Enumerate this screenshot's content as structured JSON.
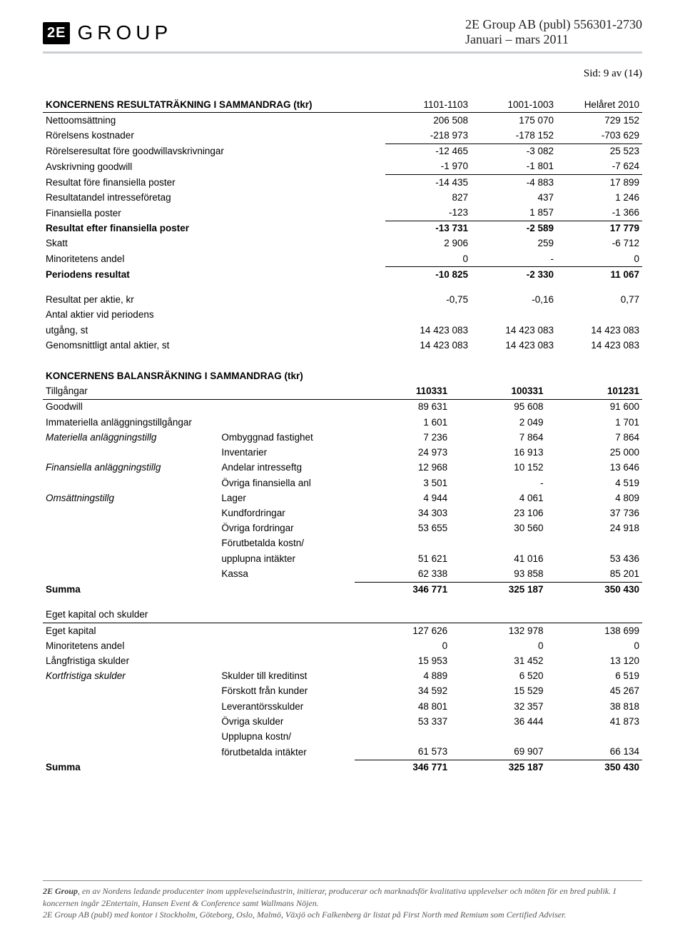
{
  "header": {
    "logo_box": "2E",
    "logo_text": "GROUP",
    "company_line": "2E Group AB (publ) 556301-2730",
    "period_line": "Januari – mars 2011"
  },
  "page_number": "Sid: 9 av (14)",
  "income": {
    "title": "KONCERNENS RESULTATRÄKNING I SAMMANDRAG (tkr)",
    "cols": [
      "1101-1103",
      "1001-1003",
      "Helåret 2010"
    ],
    "rows": [
      {
        "label": "Nettoomsättning",
        "v": [
          "206 508",
          "175 070",
          "729 152"
        ]
      },
      {
        "label": "Rörelsens kostnader",
        "v": [
          "-218 973",
          "-178 152",
          "-703 629"
        ],
        "uline": true
      },
      {
        "label": "Rörelseresultat före goodwillavskrivningar",
        "v": [
          "-12 465",
          "-3 082",
          "25 523"
        ]
      },
      {
        "label": "Avskrivning goodwill",
        "v": [
          "-1 970",
          "-1 801",
          "-7 624"
        ],
        "uline": true
      },
      {
        "label": "Resultat före finansiella poster",
        "v": [
          "-14 435",
          "-4 883",
          "17 899"
        ]
      },
      {
        "label": "Resultatandel intresseföretag",
        "v": [
          "827",
          "437",
          "1 246"
        ]
      },
      {
        "label": "Finansiella poster",
        "v": [
          "-123",
          "1 857",
          "-1 366"
        ],
        "uline": true
      },
      {
        "label": "Resultat efter finansiella poster",
        "bold": true,
        "v": [
          "-13 731",
          "-2 589",
          "17 779"
        ]
      },
      {
        "label": "Skatt",
        "v": [
          "2 906",
          "259",
          "-6 712"
        ]
      },
      {
        "label": "Minoritetens andel",
        "v": [
          "0",
          "-",
          "0"
        ],
        "uline": true
      },
      {
        "label": "Periodens resultat",
        "bold": true,
        "v": [
          "-10 825",
          "-2 330",
          "11 067"
        ]
      }
    ],
    "extra": [
      {
        "label": "Resultat per aktie, kr",
        "v": [
          "-0,75",
          "-0,16",
          "0,77"
        ]
      },
      {
        "label": "Antal aktier vid periodens",
        "v": [
          "",
          "",
          ""
        ]
      },
      {
        "label": "utgång, st",
        "v": [
          "14 423 083",
          "14 423 083",
          "14 423 083"
        ]
      },
      {
        "label": "Genomsnittligt antal aktier, st",
        "v": [
          "14 423 083",
          "14 423 083",
          "14 423 083"
        ]
      }
    ]
  },
  "balance": {
    "title": "KONCERNENS BALANSRÄKNING I SAMMANDRAG (tkr)",
    "assets_header": {
      "label": "Tillgångar",
      "v": [
        "110331",
        "100331",
        "101231"
      ]
    },
    "asset_rows": [
      {
        "label": "Goodwill",
        "sub": "",
        "v": [
          "89 631",
          "95 608",
          "91 600"
        ]
      },
      {
        "label": "Immateriella anläggningstillgångar",
        "sub": "",
        "v": [
          "1 601",
          "2 049",
          "1 701"
        ]
      },
      {
        "label": "Materiella anläggningstillg",
        "italic": true,
        "sub": "Ombyggnad fastighet",
        "v": [
          "7 236",
          "7 864",
          "7 864"
        ]
      },
      {
        "label": "",
        "sub": "Inventarier",
        "v": [
          "24 973",
          "16 913",
          "25 000"
        ]
      },
      {
        "label": "Finansiella anläggningstillg",
        "italic": true,
        "sub": "Andelar intresseftg",
        "v": [
          "12 968",
          "10 152",
          "13 646"
        ]
      },
      {
        "label": "",
        "sub": "Övriga finansiella anl",
        "v": [
          "3 501",
          "-",
          "4 519"
        ]
      },
      {
        "label": "Omsättningstillg",
        "italic": true,
        "sub": "Lager",
        "v": [
          "4 944",
          "4 061",
          "4 809"
        ]
      },
      {
        "label": "",
        "sub": "Kundfordringar",
        "v": [
          "34 303",
          "23 106",
          "37 736"
        ]
      },
      {
        "label": "",
        "sub": "Övriga fordringar",
        "v": [
          "53 655",
          "30 560",
          "24 918"
        ]
      },
      {
        "label": "",
        "sub": "Förutbetalda kostn/",
        "v": [
          "",
          "",
          ""
        ]
      },
      {
        "label": "",
        "sub": "upplupna intäkter",
        "v": [
          "51 621",
          "41 016",
          "53 436"
        ]
      },
      {
        "label": "",
        "sub": "Kassa",
        "v": [
          "62 338",
          "93 858",
          "85 201"
        ],
        "uline": true
      }
    ],
    "assets_sum": {
      "label": "Summa",
      "v": [
        "346 771",
        "325 187",
        "350 430"
      ]
    },
    "equity_header": {
      "label": "Eget kapital och skulder"
    },
    "equity_rows": [
      {
        "label": "Eget kapital",
        "sub": "",
        "v": [
          "127 626",
          "132 978",
          "138 699"
        ]
      },
      {
        "label": "Minoritetens andel",
        "sub": "",
        "v": [
          "0",
          "0",
          "0"
        ]
      },
      {
        "label": "Långfristiga skulder",
        "sub": "",
        "v": [
          "15 953",
          "31 452",
          "13 120"
        ]
      },
      {
        "label": "Kortfristiga skulder",
        "italic": true,
        "sub": "Skulder till kreditinst",
        "v": [
          "4 889",
          "6 520",
          "6 519"
        ]
      },
      {
        "label": "",
        "sub": "Förskott från kunder",
        "v": [
          "34 592",
          "15 529",
          "45 267"
        ]
      },
      {
        "label": "",
        "sub": "Leverantörsskulder",
        "v": [
          "48 801",
          "32 357",
          "38 818"
        ]
      },
      {
        "label": "",
        "sub": "Övriga skulder",
        "v": [
          "53 337",
          "36 444",
          "41 873"
        ]
      },
      {
        "label": "",
        "sub": "Upplupna kostn/",
        "v": [
          "",
          "",
          ""
        ]
      },
      {
        "label": "",
        "sub": "förutbetalda intäkter",
        "v": [
          "61 573",
          "69 907",
          "66 134"
        ],
        "uline": true
      }
    ],
    "equity_sum": {
      "label": "Summa",
      "v": [
        "346 771",
        "325 187",
        "350 430"
      ]
    }
  },
  "footer": {
    "lead": "2E Group",
    "l1": ", en av Nordens ledande producenter inom upplevelseindustrin, initierar, producerar och marknadsför kvalitativa upplevelser och möten för en bred publik. I koncernen ingår 2Entertain, Hansen Event & Conference samt Wallmans Nöjen.",
    "l2": "2E Group AB (publ) med kontor i Stockholm, Göteborg, Oslo, Malmö, Växjö och Falkenberg är listat på First North med Remium som Certified Adviser."
  }
}
